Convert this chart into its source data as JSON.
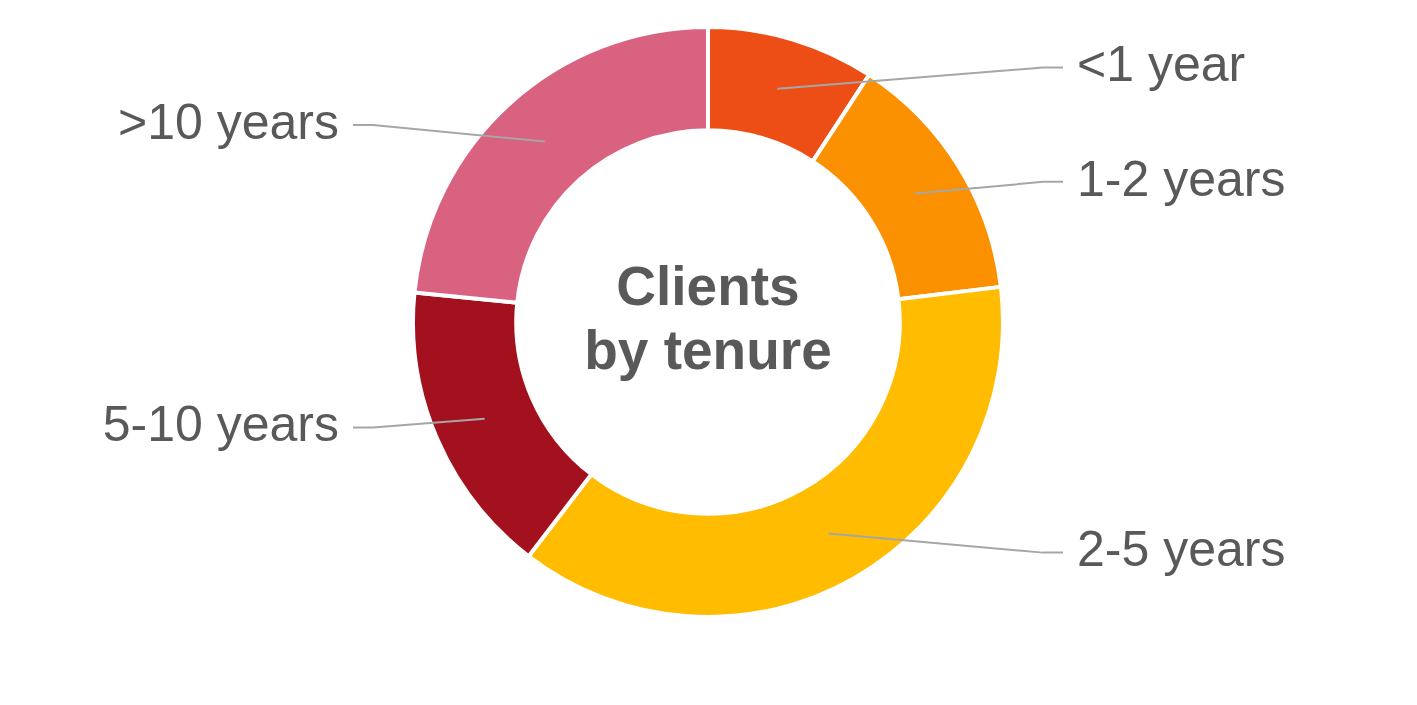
{
  "chart_data": {
    "type": "donut",
    "title": "Clients\nby tenure",
    "categories": [
      "<1 year",
      "1-2 years",
      "2-5 years",
      "5-10 years",
      ">10 years"
    ],
    "values": [
      9.2,
      13.9,
      37.3,
      16.2,
      23.4
    ],
    "colors": [
      "#ed4e15",
      "#fb9100",
      "#ffbc00",
      "#a3111e",
      "#d8627f"
    ]
  }
}
